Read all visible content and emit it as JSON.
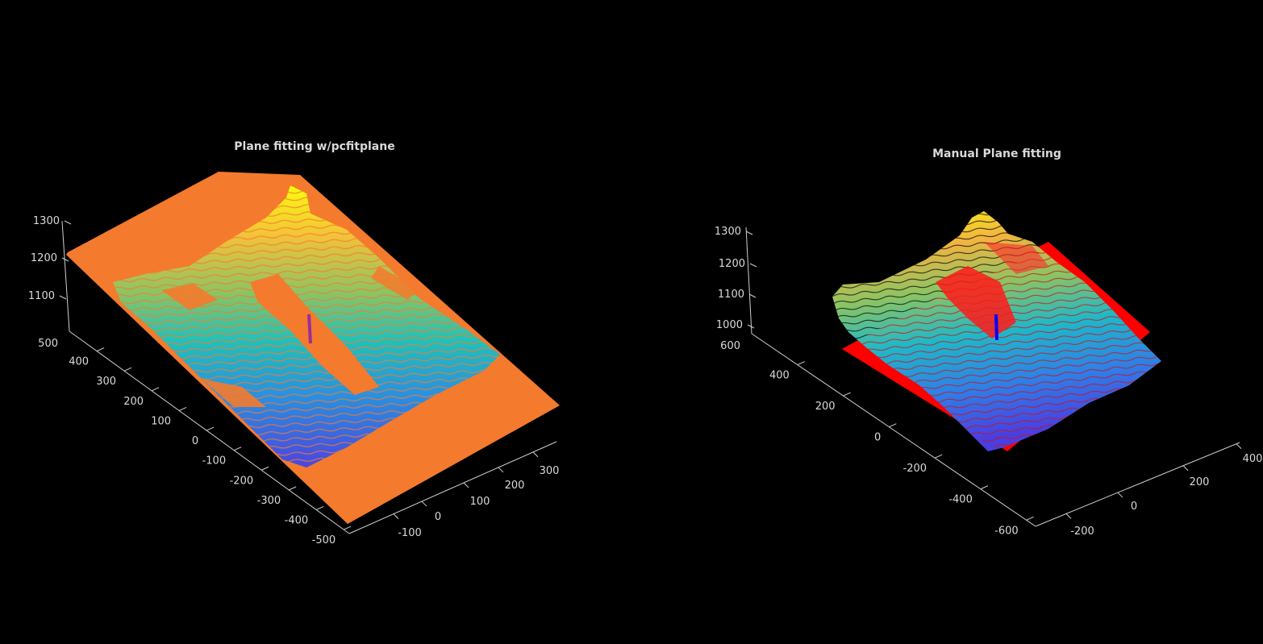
{
  "colors": {
    "background": "#000000",
    "axis": "#cfcfcf",
    "text": "#d9d9d9",
    "fitted_plane_left": "#f47a2d",
    "fitted_plane_right": "#ff0000",
    "normal_left": "#9b2d9b",
    "normal_right": "#0000ff",
    "colormap": [
      "#3e26a8",
      "#2a7fe8",
      "#18b4ce",
      "#4cc98a",
      "#c6bf3a",
      "#f8d534",
      "#f9fb0e"
    ]
  },
  "chart_data": [
    {
      "type": "scatter",
      "subtype": "3d-point-cloud-with-fitted-plane",
      "title": "Plane fitting w/pcfitplane",
      "z_ticks": [
        "1100",
        "1200",
        "1300"
      ],
      "z_base_tick": "500",
      "y_ticks": [
        "400",
        "300",
        "200",
        "100",
        "0",
        "-100",
        "-200",
        "-300",
        "-400",
        "-500"
      ],
      "x_ticks": [
        "-100",
        "0",
        "100",
        "200",
        "300"
      ],
      "xlim": [
        -150,
        350
      ],
      "ylim": [
        -550,
        500
      ],
      "zlim": [
        1000,
        1300
      ],
      "grid": false,
      "plane_color": "orange",
      "normal_vector_color": "purple",
      "point_color_by": "z (parula colormap)"
    },
    {
      "type": "scatter",
      "subtype": "3d-point-cloud-with-fitted-plane",
      "title": "Manual Plane fitting",
      "z_ticks": [
        "1000",
        "1100",
        "1200",
        "1300"
      ],
      "z_base_tick": "600",
      "y_ticks": [
        "400",
        "200",
        "0",
        "-200",
        "-400",
        "-600"
      ],
      "x_ticks": [
        "-200",
        "0",
        "200",
        "400"
      ],
      "xlim": [
        -300,
        450
      ],
      "ylim": [
        -700,
        650
      ],
      "zlim": [
        950,
        1300
      ],
      "grid": false,
      "plane_color": "red",
      "normal_vector_color": "blue",
      "point_color_by": "z (parula colormap)"
    }
  ]
}
